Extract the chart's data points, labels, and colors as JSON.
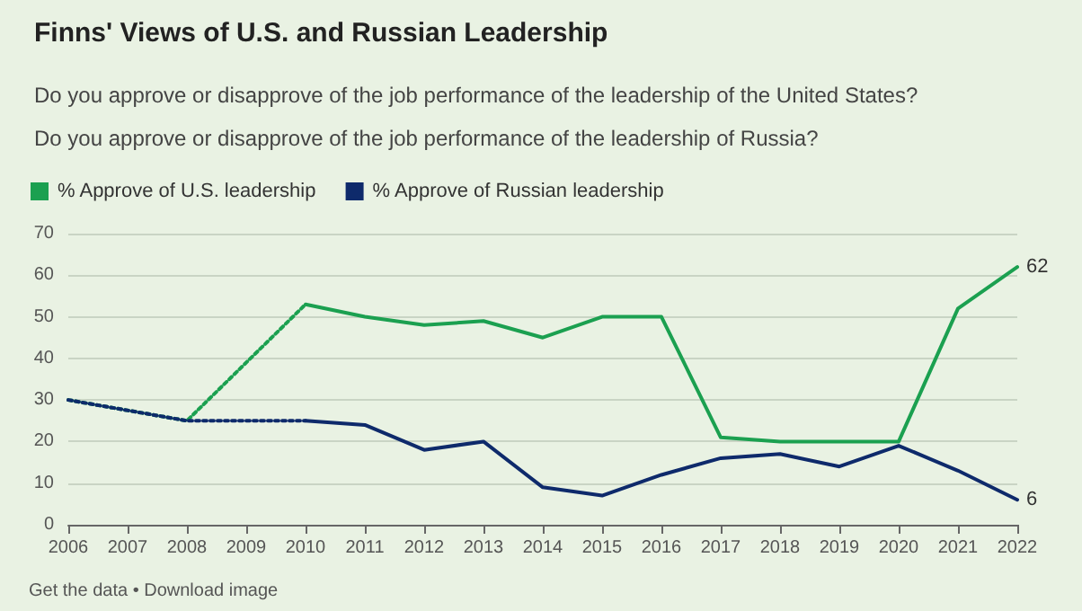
{
  "chart_data": {
    "type": "line",
    "title": "Finns' Views of U.S. and Russian Leadership",
    "subtitle": "Do you approve or disapprove of the job performance of the leadership of the United States?\nDo you approve or disapprove of the job performance of the leadership of Russia?",
    "categories": [
      "2006",
      "2007",
      "2008",
      "2009",
      "2010",
      "2011",
      "2012",
      "2013",
      "2014",
      "2015",
      "2016",
      "2017",
      "2018",
      "2019",
      "2020",
      "2021",
      "2022"
    ],
    "series": [
      {
        "name": "% Approve of U.S. leadership",
        "color": "#1ba050",
        "values": [
          null,
          null,
          null,
          null,
          53,
          50,
          48,
          49,
          45,
          50,
          50,
          21,
          20,
          20,
          20,
          52,
          62
        ],
        "value_labels": [
          null,
          null,
          null,
          null,
          null,
          null,
          null,
          null,
          null,
          null,
          null,
          null,
          null,
          null,
          null,
          null,
          "62"
        ]
      },
      {
        "name": "% Approve of Russian leadership",
        "color": "#0e2a6b",
        "values": [
          null,
          null,
          null,
          null,
          25,
          24,
          18,
          20,
          9,
          7,
          12,
          16,
          17,
          14,
          19,
          13,
          6
        ],
        "value_labels": [
          null,
          null,
          null,
          null,
          null,
          null,
          null,
          null,
          null,
          null,
          null,
          null,
          null,
          null,
          null,
          null,
          "6"
        ]
      },
      {
        "color": "#1ba050",
        "line_style": "dotted",
        "values": [
          30,
          null,
          25,
          null,
          53,
          null,
          null,
          null,
          null,
          null,
          null,
          null,
          null,
          null,
          null,
          null,
          null
        ]
      },
      {
        "color": "#0e2a6b",
        "line_style": "dotted",
        "values": [
          30,
          null,
          25,
          null,
          25,
          null,
          null,
          null,
          null,
          null,
          null,
          null,
          null,
          null,
          null,
          null,
          null
        ]
      }
    ],
    "ylim": [
      0,
      70
    ],
    "yticks": [
      0,
      10,
      20,
      30,
      40,
      50,
      60,
      70
    ],
    "grid": "y",
    "legend": "top left",
    "marker": "none",
    "line_style": "solid",
    "annotations": [
      "Get the data • Download image"
    ]
  }
}
